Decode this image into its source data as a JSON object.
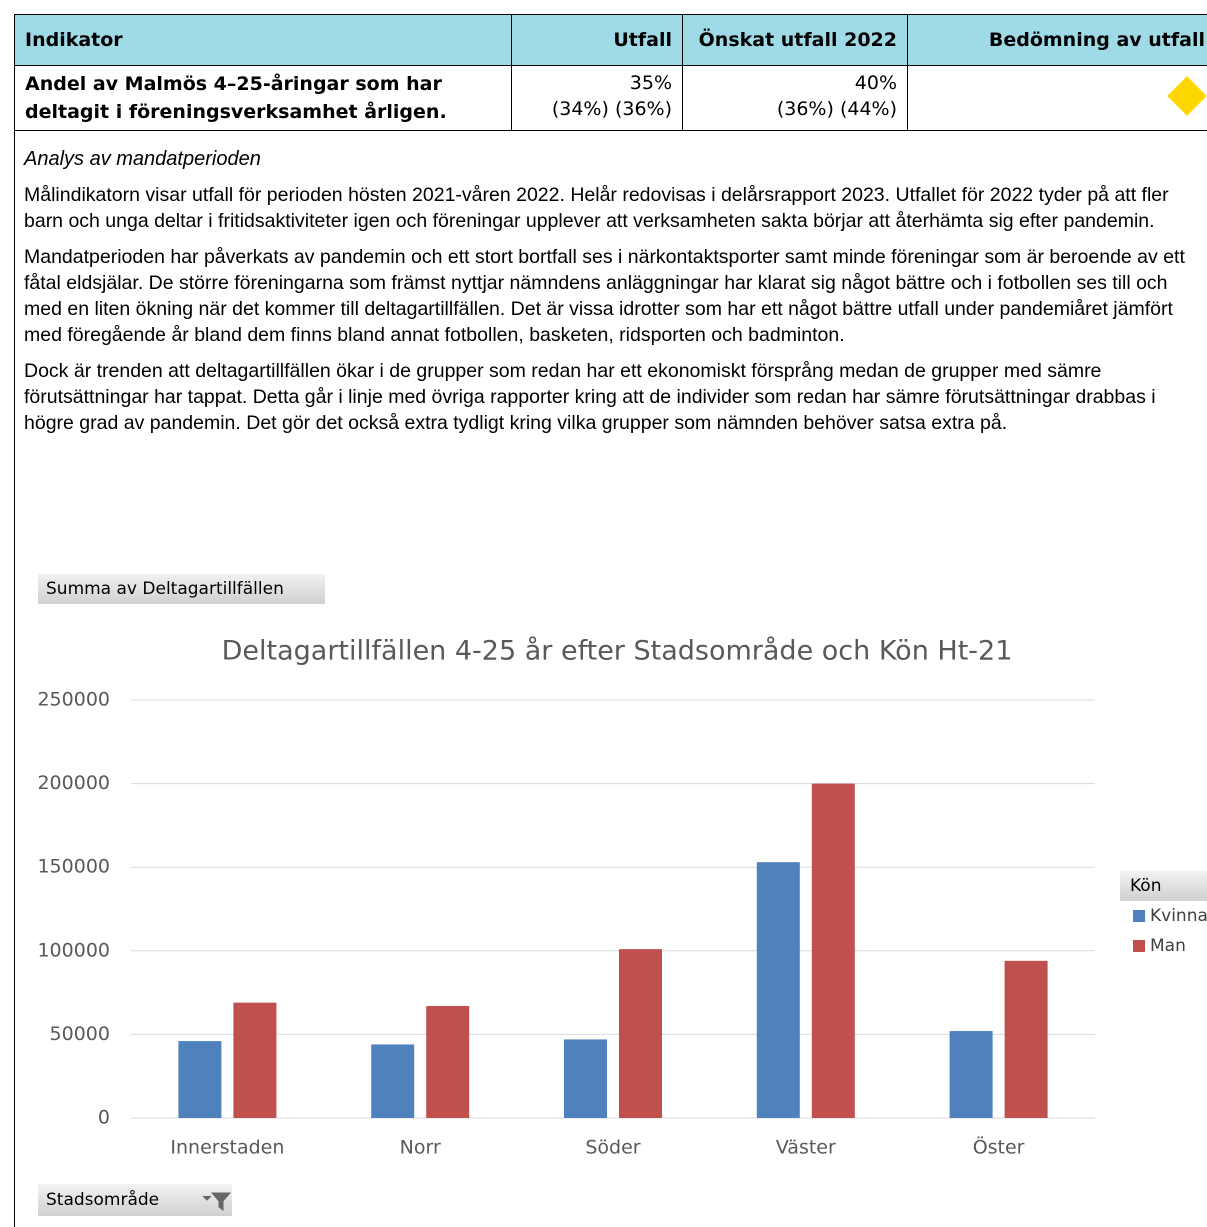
{
  "table": {
    "header": [
      "Indikator",
      "Utfall",
      "Önskat utfall 2022",
      "Bedömning av utfall"
    ],
    "rows": [
      [
        "Andel av Malmös 4–25-åringar som har deltagit i föreningsverksamhet årligen.",
        [
          "35%",
          "(34%) (36%)"
        ],
        [
          "40%",
          "(36%) (44%)"
        ]
      ]
    ]
  },
  "analysis": {
    "heading": "Analys av mandatperioden",
    "paragraphs": [
      "Målindikatorn visar utfall för perioden hösten 2021-våren 2022. Helår redovisas i delårsrapport 2023. Utfallet för 2022 tyder på att fler barn och unga deltar i fritidsaktiviteter igen och föreningar upplever att verksamheten sakta börjar att återhämta sig efter pandemin.",
      "Mandatperioden har påverkats av pandemin och ett stort bortfall ses i närkontaktsporter samt minde föreningar som är beroende av ett fåtal eldsjälar. De större föreningarna som främst nyttjar nämndens anläggningar har klarat sig något bättre och i fotbollen ses till och med en liten ökning när det kommer till deltagartillfällen. Det är vissa idrotter som har ett något bättre utfall under pandemiåret jämfört med föregående år bland dem finns bland annat fotbollen, basketen, ridsporten och badminton.",
      "Dock är trenden att deltagartillfällen ökar i de grupper som redan har ett ekonomiskt försprång medan de grupper med sämre förutsättningar har tappat. Detta går i linje med övriga rapporter kring att de individer som redan har sämre förutsättningar drabbas i högre grad av pandemin. Det gör det också extra tydligt kring vilka grupper som nämnden behöver satsa extra på."
    ]
  },
  "chart_data": {
    "type": "bar",
    "value_field": "Summa av Deltagartillfällen",
    "title": "Deltagartillfällen 4-25 år efter Stadsområde och Kön Ht-21",
    "axis_field": "Stadsområde",
    "legend_title": "Kön",
    "categories": [
      "Innerstaden",
      "Norr",
      "Söder",
      "Väster",
      "Öster"
    ],
    "series": [
      {
        "name": "Kvinna",
        "color": "#4f81bd",
        "values": [
          46000,
          44000,
          47000,
          153000,
          52000
        ]
      },
      {
        "name": "Man",
        "color": "#c0504d",
        "values": [
          69000,
          67000,
          101000,
          200000,
          94000
        ]
      }
    ],
    "ylim": [
      0,
      250000
    ],
    "yticks": [
      0,
      50000,
      100000,
      150000,
      200000,
      250000
    ],
    "grid": true
  }
}
